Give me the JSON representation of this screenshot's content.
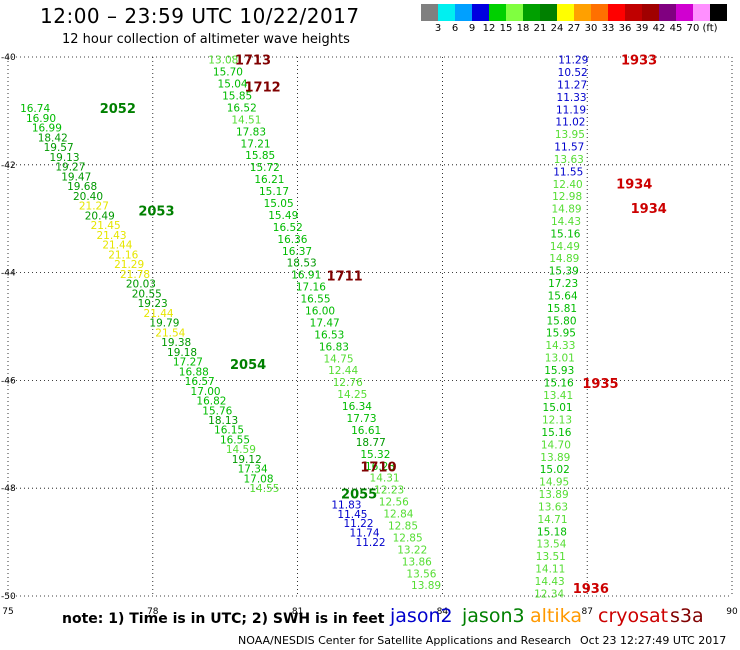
{
  "header": {
    "title": "12:00 – 23:59 UTC 10/22/2017",
    "subtitle": "12 hour collection of altimeter wave heights"
  },
  "colorbar": {
    "colors": [
      "#808080",
      "#00f0f0",
      "#00a0ff",
      "#0000e0",
      "#00d000",
      "#80ff40",
      "#00a000",
      "#008000",
      "#ffff00",
      "#ffa000",
      "#ff7000",
      "#ff0000",
      "#c00000",
      "#a00000",
      "#800080",
      "#d000d0",
      "#ff90ff",
      "#000000"
    ],
    "ticks": [
      "3",
      "6",
      "9",
      "12",
      "15",
      "18",
      "21",
      "24",
      "27",
      "30",
      "33",
      "36",
      "39",
      "42",
      "45",
      "70",
      "(ft)"
    ]
  },
  "footer": {
    "note": "note: 1) Time is in UTC; 2) SWH is in feet",
    "credit": "NOAA/NESDIS Center for Satellite Applications and Research",
    "timestamp": "Oct 23 12:27:49 UTC 2017"
  },
  "legend": [
    {
      "name": "jason2",
      "color": "#0000cc"
    },
    {
      "name": "jason3",
      "color": "#008000"
    },
    {
      "name": "altika",
      "color": "#ff9900"
    },
    {
      "name": "cryosat",
      "color": "#cc0000"
    },
    {
      "name": "s3a",
      "color": "#800000"
    }
  ],
  "chart_data": {
    "type": "scatter",
    "title": "12 hour collection of altimeter wave heights",
    "xlim": [
      75,
      90
    ],
    "ylim": [
      -50,
      -40
    ],
    "xticks": [
      "75",
      "78",
      "81",
      "84",
      "87",
      "90"
    ],
    "yticks": [
      "-40",
      "-42",
      "-44",
      "-46",
      "-48",
      "-50"
    ],
    "grid": true,
    "value_unit": "ft",
    "swh_colors": {
      "11.x": "#0000cc",
      "12-15": "#55dd33",
      "15-18": "#00bb00",
      "18-21": "#009900",
      "21-24": "#e6e600"
    },
    "passes": [
      {
        "label": "2052",
        "x": 76.9,
        "y": -40.95,
        "color": "#008000"
      },
      {
        "label": "2053",
        "x": 77.7,
        "y": -42.85,
        "color": "#008000"
      },
      {
        "label": "2054",
        "x": 79.6,
        "y": -45.7,
        "color": "#008000"
      },
      {
        "label": "2055",
        "x": 81.9,
        "y": -48.1,
        "color": "#008000"
      },
      {
        "label": "1713",
        "x": 79.7,
        "y": -40.05,
        "color": "#800000"
      },
      {
        "label": "1712",
        "x": 79.9,
        "y": -40.55,
        "color": "#800000"
      },
      {
        "label": "1711",
        "x": 81.6,
        "y": -44.05,
        "color": "#800000"
      },
      {
        "label": "1710",
        "x": 82.3,
        "y": -47.6,
        "color": "#800000"
      },
      {
        "label": "1933",
        "x": 87.7,
        "y": -40.05,
        "color": "#cc0000"
      },
      {
        "label": "1934",
        "x": 87.6,
        "y": -42.35,
        "color": "#cc0000"
      },
      {
        "label": "1934",
        "x": 87.9,
        "y": -42.8,
        "color": "#cc0000"
      },
      {
        "label": "1935",
        "x": 86.9,
        "y": -46.05,
        "color": "#cc0000"
      },
      {
        "label": "1936",
        "x": 86.7,
        "y": -49.85,
        "color": "#cc0000"
      }
    ],
    "tracks": [
      {
        "name": "jason3_2052_2054",
        "start": [
          75.25,
          -40.95
        ],
        "end": [
          80.0,
          -48.0
        ],
        "values": [
          16.74,
          16.9,
          16.99,
          18.42,
          19.57,
          19.13,
          19.27,
          19.47,
          19.68,
          20.4,
          21.27,
          20.49,
          21.45,
          21.43,
          21.44,
          21.16,
          21.29,
          21.78,
          20.03,
          20.55,
          19.23,
          21.44,
          19.79,
          21.54,
          19.38,
          19.18,
          17.27,
          16.88,
          16.57,
          17.0,
          16.82,
          15.76,
          18.13,
          16.15,
          16.55,
          14.59,
          19.12,
          17.34,
          17.08,
          14.55
        ]
      },
      {
        "name": "s3a_1713_1710",
        "start": [
          79.15,
          -40.05
        ],
        "end": [
          83.35,
          -49.8
        ],
        "values": [
          13.08,
          15.7,
          15.04,
          15.85,
          16.52,
          14.51,
          17.83,
          17.21,
          15.85,
          15.72,
          16.21,
          15.17,
          15.05,
          15.49,
          16.52,
          16.36,
          16.37,
          18.53,
          16.91,
          17.16,
          16.55,
          16.0,
          17.47,
          16.53,
          16.83,
          14.75,
          12.44,
          12.76,
          14.25,
          16.34,
          17.73,
          16.61,
          18.77,
          15.32,
          16.23,
          14.31,
          12.23,
          12.56,
          12.84,
          12.85,
          12.85,
          13.22,
          13.86,
          13.56,
          13.89
        ]
      },
      {
        "name": "jason2_2055",
        "start": [
          81.7,
          -48.3
        ],
        "end": [
          82.2,
          -49.0
        ],
        "values": [
          11.83,
          11.45,
          11.22,
          11.74,
          11.22
        ]
      },
      {
        "name": "cryosat_1933_1936",
        "start": [
          86.4,
          -40.05
        ],
        "end": [
          85.9,
          -49.95
        ],
        "values": [
          11.29,
          10.52,
          11.27,
          11.33,
          11.19,
          11.02,
          13.95,
          11.57,
          13.63,
          11.55,
          12.4,
          12.98,
          14.89,
          14.43,
          15.16,
          14.49,
          14.89,
          15.39,
          17.23,
          15.64,
          15.81,
          15.8,
          15.95,
          14.33,
          13.01,
          15.93,
          15.16,
          13.41,
          15.01,
          12.13,
          15.16,
          14.7,
          13.89,
          15.02,
          14.95,
          13.89,
          13.63,
          14.71,
          15.18,
          13.54,
          13.51,
          14.11,
          14.43,
          12.34
        ]
      }
    ]
  }
}
